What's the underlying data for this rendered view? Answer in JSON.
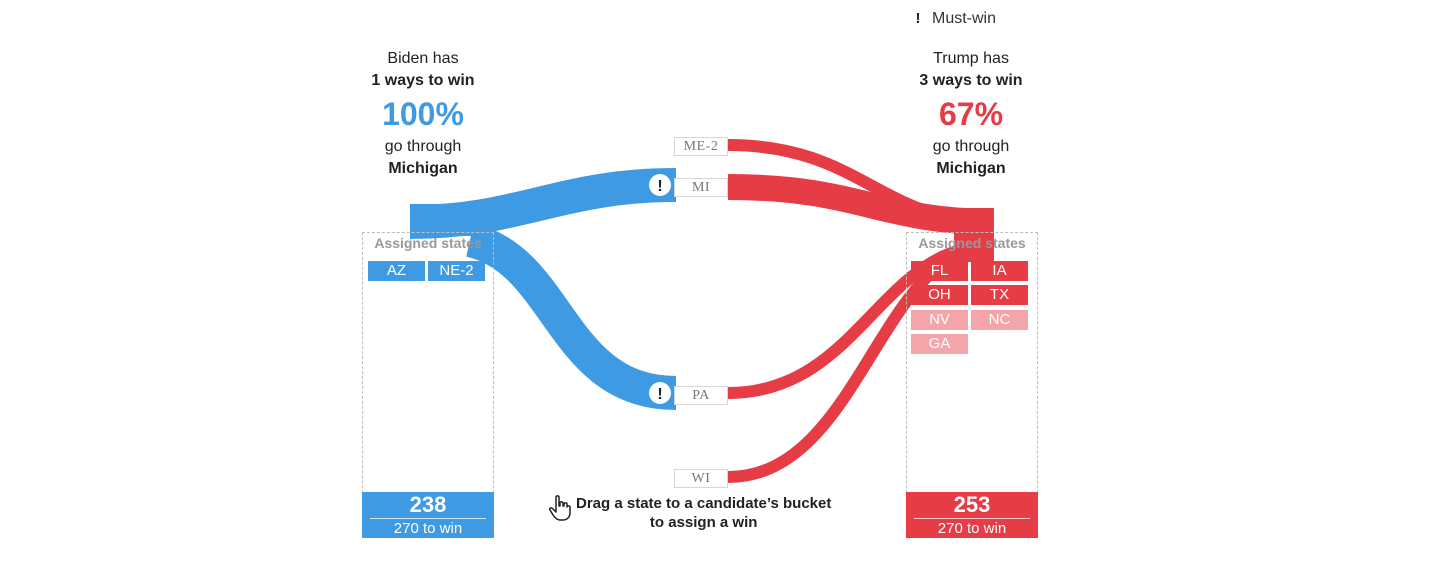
{
  "legend": {
    "icon": "exclamation-icon",
    "label": "Must-win"
  },
  "biden": {
    "line1": "Biden has",
    "ways": "1 ways to win",
    "pct": "100%",
    "through": "go through",
    "state": "Michigan",
    "bucket_title": "Assigned states",
    "states": [
      "AZ",
      "NE-2"
    ],
    "total": "238",
    "to_win": "270 to win",
    "color": "#3e9ae2"
  },
  "trump": {
    "line1": "Trump has",
    "ways": "3 ways to win",
    "pct": "67%",
    "through": "go through",
    "state": "Michigan",
    "bucket_title": "Assigned states",
    "states_solid": [
      "FL",
      "IA",
      "OH",
      "TX"
    ],
    "states_light": [
      "NV",
      "NC",
      "GA"
    ],
    "total": "253",
    "to_win": "270 to win",
    "color": "#e63c46",
    "light_color": "#f3a5aa"
  },
  "middle_states": [
    "ME-2",
    "MI",
    "PA",
    "WI"
  ],
  "must_win_states": [
    "MI",
    "PA"
  ],
  "hint": {
    "icon": "hand-pointer-icon",
    "line1": "Drag a state to a candidate’s bucket",
    "line2": "to assign a win"
  }
}
